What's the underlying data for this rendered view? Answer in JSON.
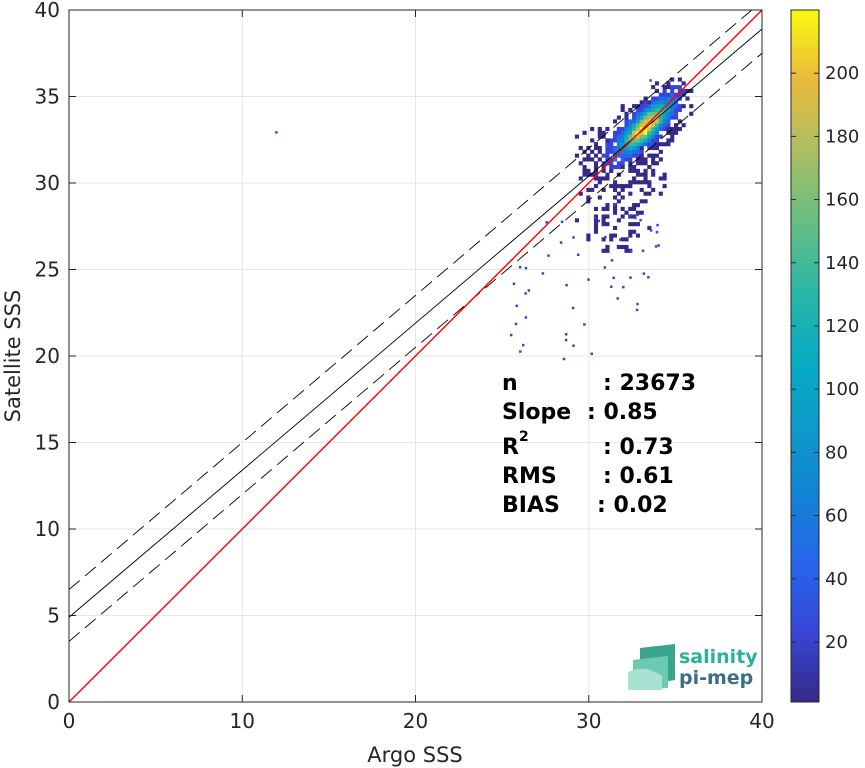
{
  "chart_data": {
    "type": "heatmap",
    "xlabel": "Argo SSS",
    "ylabel": "Satellite SSS",
    "xlim": [
      0,
      40
    ],
    "ylim": [
      0,
      40
    ],
    "xticks": [
      "0",
      "10",
      "20",
      "30",
      "40"
    ],
    "yticks": [
      "0",
      "5",
      "10",
      "15",
      "20",
      "25",
      "30",
      "35",
      "40"
    ],
    "grid": true,
    "colorbar": {
      "range": [
        1,
        220
      ],
      "ticks": [
        "20",
        "40",
        "60",
        "80",
        "100",
        "120",
        "140",
        "160",
        "180",
        "200"
      ],
      "colormap": "parula"
    },
    "density_center": {
      "x": 33.2,
      "y": 33.2
    },
    "outliers": [
      {
        "x": 11.9,
        "y": 33.0
      },
      {
        "x": 26.3,
        "y": 22.3
      },
      {
        "x": 28.5,
        "y": 19.9
      },
      {
        "x": 30.1,
        "y": 20.2
      },
      {
        "x": 31.6,
        "y": 23.4
      },
      {
        "x": 27.5,
        "y": 27.8
      },
      {
        "x": 33.5,
        "y": 36.0
      }
    ],
    "reference_lines": {
      "identity": {
        "slope": 1.0,
        "intercept": 0.0,
        "color": "#ff0000"
      },
      "fit": {
        "slope": 0.85,
        "intercept": 4.9,
        "style": "solid",
        "color": "#000000"
      },
      "fit_upper": {
        "slope": 0.85,
        "intercept": 6.5,
        "style": "dashed",
        "color": "#000000"
      },
      "fit_lower": {
        "slope": 0.85,
        "intercept": 3.5,
        "style": "dashed",
        "color": "#000000"
      }
    }
  },
  "stats": {
    "n_label": "n",
    "n_value": ": 23673",
    "slope_label": "Slope",
    "slope_value": ": 0.85",
    "r2_label": "R",
    "r2_sup": "2",
    "r2_value": ": 0.73",
    "rms_label": "RMS",
    "rms_value": ": 0.61",
    "bias_label": "BIAS",
    "bias_value": ": 0.02"
  },
  "logo": {
    "line1": "salinity",
    "line2": "pi-mep",
    "color1": "#2bb39a",
    "color2": "#3a6f87"
  }
}
